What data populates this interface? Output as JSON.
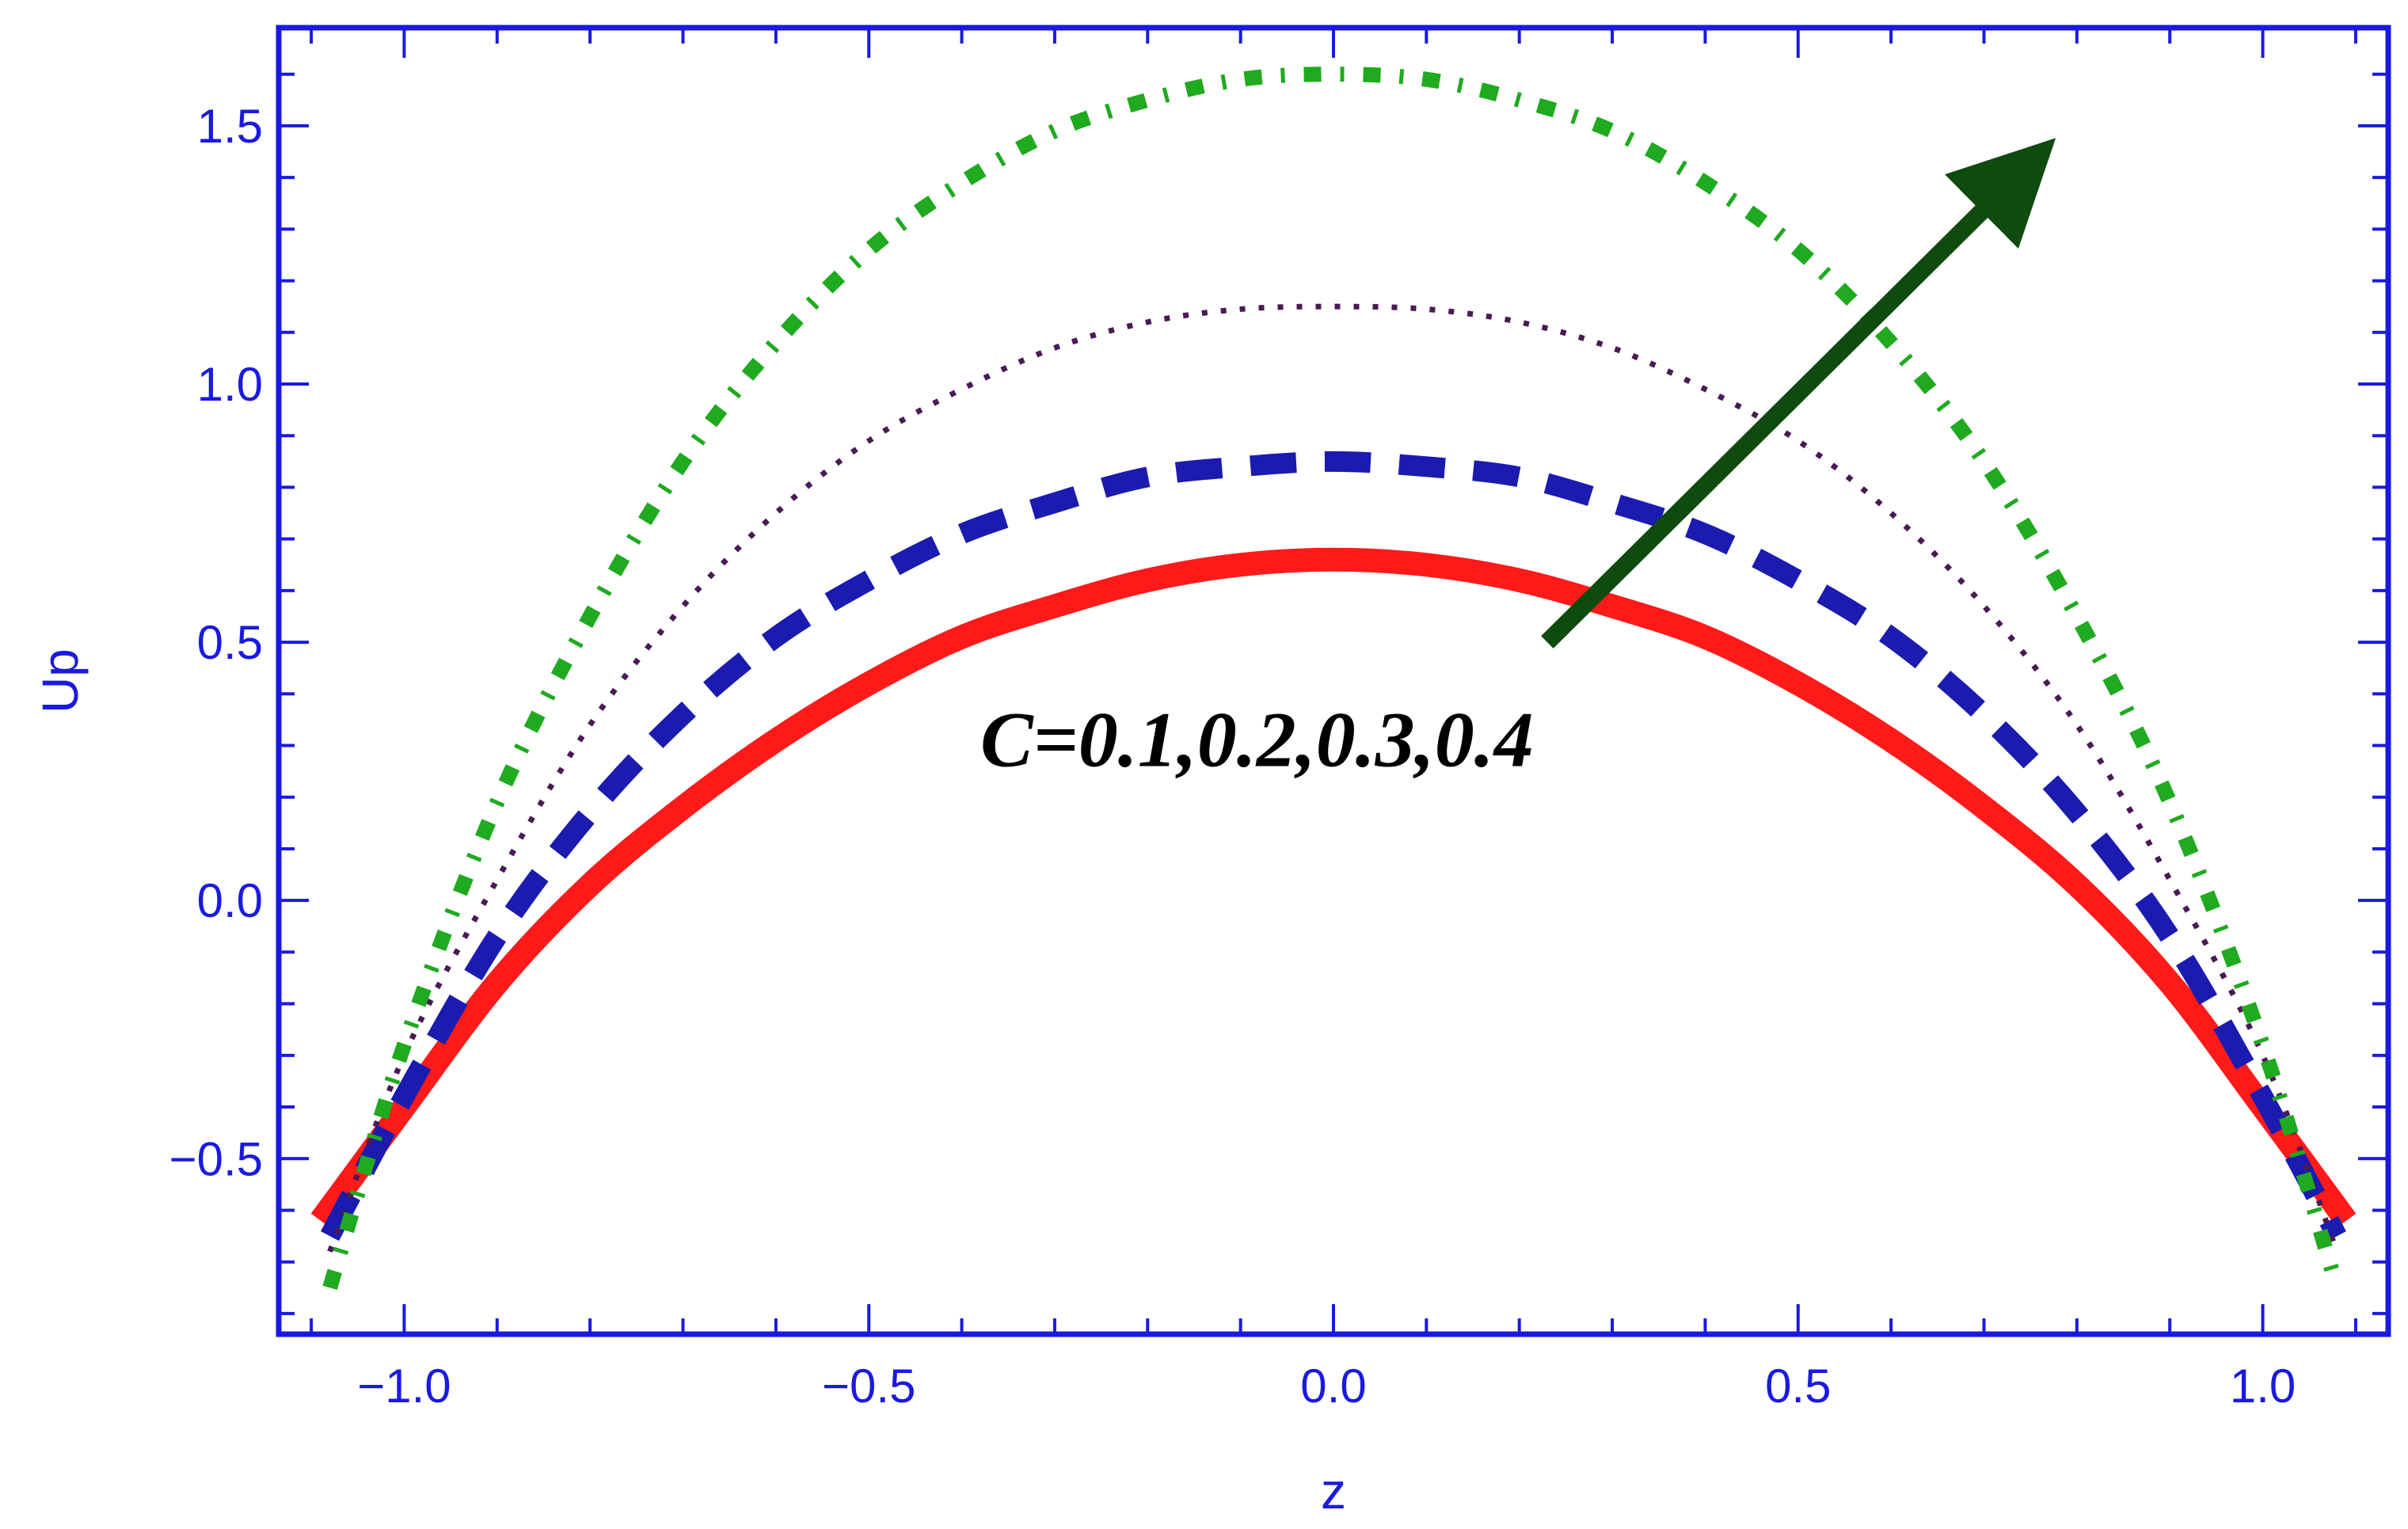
{
  "chart_data": {
    "type": "line",
    "title": "",
    "xlabel": "z",
    "ylabel": "Up",
    "xlim": [
      -1.135,
      1.135
    ],
    "ylim": [
      -0.84,
      1.69
    ],
    "x_ticks": [
      -1.0,
      -0.5,
      0.0,
      0.5,
      1.0
    ],
    "x_tick_labels": [
      "−1.0",
      "−0.5",
      "0.0",
      "0.5",
      "1.0"
    ],
    "y_ticks": [
      -0.5,
      0.0,
      0.5,
      1.0,
      1.5
    ],
    "y_tick_labels": [
      "−0.5",
      "0.0",
      "0.5",
      "1.0",
      "1.5"
    ],
    "grid": false,
    "frame_color": "#1a1adf",
    "series": [
      {
        "color": "#ff1a1a",
        "style": "solid",
        "x": [
          -1.09,
          -1.0,
          -0.9,
          -0.8,
          -0.7,
          -0.6,
          -0.5,
          -0.4,
          -0.3,
          -0.2,
          -0.1,
          0.0,
          0.1,
          0.2,
          0.3,
          0.4,
          0.5,
          0.6,
          0.7,
          0.8,
          0.9,
          1.0,
          1.09
        ],
        "y": [
          -0.62,
          -0.4,
          -0.16,
          0.03,
          0.18,
          0.31,
          0.42,
          0.51,
          0.57,
          0.62,
          0.65,
          0.66,
          0.65,
          0.62,
          0.57,
          0.51,
          0.42,
          0.31,
          0.18,
          0.03,
          -0.16,
          -0.4,
          -0.62
        ]
      },
      {
        "color": "#1b1bb0",
        "style": "dashed",
        "x": [
          -1.08,
          -1.0,
          -0.9,
          -0.8,
          -0.7,
          -0.6,
          -0.5,
          -0.4,
          -0.3,
          -0.2,
          -0.1,
          0.0,
          0.1,
          0.2,
          0.3,
          0.4,
          0.5,
          0.6,
          0.7,
          0.8,
          0.9,
          1.0,
          1.08
        ],
        "y": [
          -0.65,
          -0.38,
          -0.07,
          0.17,
          0.36,
          0.51,
          0.62,
          0.71,
          0.77,
          0.82,
          0.84,
          0.85,
          0.84,
          0.82,
          0.77,
          0.71,
          0.62,
          0.51,
          0.36,
          0.17,
          -0.07,
          -0.38,
          -0.65
        ]
      },
      {
        "color": "#4a1a55",
        "style": "dotted",
        "x": [
          -1.08,
          -1.0,
          -0.9,
          -0.8,
          -0.7,
          -0.6,
          -0.5,
          -0.4,
          -0.3,
          -0.2,
          -0.1,
          0.0,
          0.1,
          0.2,
          0.3,
          0.4,
          0.5,
          0.6,
          0.7,
          0.8,
          0.9,
          1.0,
          1.08
        ],
        "y": [
          -0.68,
          -0.3,
          0.04,
          0.34,
          0.57,
          0.75,
          0.89,
          0.99,
          1.07,
          1.12,
          1.145,
          1.15,
          1.145,
          1.12,
          1.07,
          0.99,
          0.89,
          0.75,
          0.57,
          0.34,
          0.04,
          -0.3,
          -0.68
        ]
      },
      {
        "color": "#1faa1f",
        "style": "dotdash",
        "x": [
          -1.08,
          -1.0,
          -0.9,
          -0.8,
          -0.7,
          -0.6,
          -0.5,
          -0.4,
          -0.3,
          -0.2,
          -0.1,
          0.0,
          0.1,
          0.2,
          0.3,
          0.4,
          0.5,
          0.6,
          0.7,
          0.8,
          0.9,
          1.0,
          1.08
        ],
        "y": [
          -0.75,
          -0.28,
          0.19,
          0.55,
          0.85,
          1.08,
          1.26,
          1.39,
          1.49,
          1.55,
          1.59,
          1.6,
          1.59,
          1.55,
          1.49,
          1.39,
          1.26,
          1.08,
          0.85,
          0.55,
          0.19,
          -0.28,
          -0.75
        ]
      }
    ],
    "annotation": {
      "text": "C=0.1,0.2,0.3,0.4",
      "arrow_color": "#0f4a0f",
      "arrow_from": [
        0.23,
        0.5
      ],
      "arrow_to": [
        0.74,
        1.41
      ],
      "text_at": [
        -0.38,
        0.26
      ]
    }
  }
}
